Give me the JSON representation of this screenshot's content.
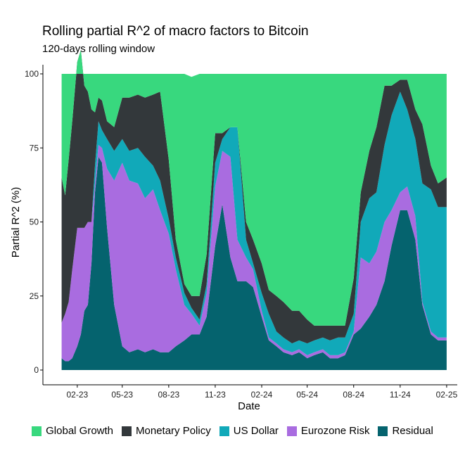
{
  "chart_data": {
    "type": "area",
    "stacked": true,
    "title": "Rolling partial R^2 of macro factors to Bitcoin",
    "subtitle": "120-days rolling window",
    "xlabel": "Date",
    "ylabel": "Partial R^2 (%)",
    "ylim": [
      0,
      100
    ],
    "yticks": [
      0,
      25,
      50,
      75,
      100
    ],
    "xlim": [
      "2022-11-25",
      "2025-02-22"
    ],
    "xticks": [
      "2023-02-01",
      "2023-05-01",
      "2023-08-01",
      "2023-11-01",
      "2024-02-01",
      "2024-05-01",
      "2024-08-01",
      "2024-11-01",
      "2025-02-01"
    ],
    "xtick_labels": [
      "02-23",
      "05-23",
      "08-23",
      "11-23",
      "02-24",
      "05-24",
      "08-24",
      "11-24",
      "02-25"
    ],
    "grid": false,
    "legend_position": "bottom",
    "dates": [
      "2023-01-01",
      "2023-01-08",
      "2023-01-15",
      "2023-01-22",
      "2023-02-01",
      "2023-02-08",
      "2023-02-15",
      "2023-02-22",
      "2023-03-01",
      "2023-03-08",
      "2023-03-15",
      "2023-03-22",
      "2023-04-01",
      "2023-04-15",
      "2023-05-01",
      "2023-05-15",
      "2023-06-01",
      "2023-06-15",
      "2023-07-01",
      "2023-07-15",
      "2023-08-01",
      "2023-08-15",
      "2023-09-01",
      "2023-09-15",
      "2023-10-01",
      "2023-10-15",
      "2023-11-01",
      "2023-11-15",
      "2023-12-01",
      "2023-12-15",
      "2024-01-01",
      "2024-01-15",
      "2024-02-01",
      "2024-02-15",
      "2024-03-01",
      "2024-03-15",
      "2024-04-01",
      "2024-04-15",
      "2024-05-01",
      "2024-05-15",
      "2024-06-01",
      "2024-06-15",
      "2024-07-01",
      "2024-07-15",
      "2024-08-01",
      "2024-08-15",
      "2024-09-01",
      "2024-09-15",
      "2024-10-01",
      "2024-10-15",
      "2024-11-01",
      "2024-11-15",
      "2024-12-01",
      "2024-12-15",
      "2025-01-01",
      "2025-01-15",
      "2025-02-01"
    ],
    "series": [
      {
        "name": "Residual",
        "color": "#05636e",
        "values": [
          4,
          3,
          3,
          4,
          8,
          12,
          20,
          22,
          36,
          60,
          72,
          70,
          48,
          22,
          8,
          6,
          7,
          6,
          7,
          6,
          6,
          8,
          10,
          12,
          12,
          18,
          42,
          56,
          38,
          30,
          30,
          28,
          18,
          10,
          8,
          6,
          5,
          6,
          4,
          5,
          6,
          4,
          4,
          5,
          12,
          14,
          18,
          22,
          30,
          42,
          54,
          54,
          44,
          22,
          12,
          10,
          10
        ]
      },
      {
        "name": "Eurozone Risk",
        "color": "#a96ce0",
        "values": [
          12,
          16,
          20,
          30,
          40,
          36,
          28,
          28,
          14,
          3,
          4,
          5,
          20,
          42,
          62,
          58,
          56,
          52,
          54,
          48,
          40,
          26,
          12,
          7,
          3,
          8,
          20,
          18,
          34,
          14,
          8,
          6,
          2,
          1,
          1,
          1,
          1,
          1,
          1,
          1,
          1,
          1,
          1,
          1,
          1,
          24,
          18,
          18,
          20,
          12,
          6,
          8,
          8,
          1,
          1,
          1,
          1
        ]
      },
      {
        "name": "US Dollar",
        "color": "#11a9b9",
        "values": [
          0,
          0,
          0,
          0,
          0,
          0,
          0,
          0,
          0,
          6,
          8,
          6,
          10,
          10,
          8,
          10,
          12,
          14,
          8,
          10,
          5,
          4,
          4,
          2,
          2,
          3,
          8,
          4,
          10,
          38,
          6,
          2,
          6,
          8,
          4,
          4,
          3,
          3,
          4,
          4,
          4,
          5,
          6,
          5,
          6,
          12,
          22,
          20,
          26,
          32,
          34,
          26,
          26,
          40,
          48,
          44,
          44
        ]
      },
      {
        "name": "Monetary Policy",
        "color": "#33383b",
        "values": [
          49,
          40,
          48,
          50,
          56,
          60,
          48,
          44,
          38,
          18,
          8,
          10,
          6,
          8,
          14,
          18,
          18,
          20,
          24,
          30,
          20,
          6,
          3,
          4,
          8,
          10,
          10,
          2,
          0,
          0,
          6,
          8,
          10,
          8,
          12,
          12,
          11,
          10,
          8,
          5,
          4,
          5,
          4,
          4,
          12,
          10,
          16,
          22,
          20,
          10,
          4,
          10,
          10,
          20,
          8,
          8,
          10
        ]
      },
      {
        "name": "Global Growth",
        "color": "#38d87e",
        "values": [
          35,
          41,
          29,
          16,
          -4,
          -8,
          4,
          6,
          12,
          13,
          8,
          9,
          16,
          18,
          8,
          8,
          7,
          8,
          7,
          6,
          29,
          56,
          71,
          74,
          75,
          61,
          20,
          20,
          18,
          18,
          50,
          56,
          64,
          73,
          75,
          77,
          80,
          80,
          83,
          85,
          85,
          85,
          85,
          85,
          69,
          40,
          26,
          18,
          4,
          4,
          2,
          2,
          12,
          17,
          31,
          37,
          35
        ]
      }
    ]
  }
}
